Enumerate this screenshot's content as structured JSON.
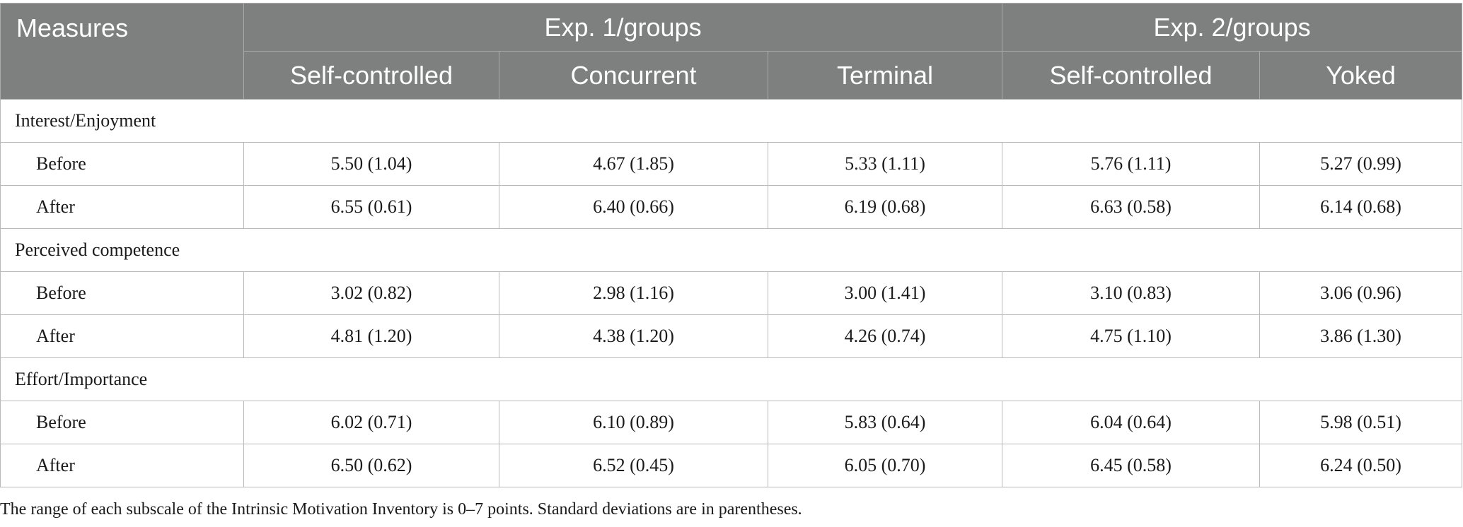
{
  "header": {
    "measures": "Measures",
    "exp1": "Exp. 1/groups",
    "exp2": "Exp. 2/groups",
    "groups": [
      "Self-controlled",
      "Concurrent",
      "Terminal",
      "Self-controlled",
      "Yoked"
    ]
  },
  "sections": [
    {
      "title": "Interest/Enjoyment",
      "rows": [
        {
          "label": "Before",
          "values": [
            "5.50 (1.04)",
            "4.67 (1.85)",
            "5.33 (1.11)",
            "5.76 (1.11)",
            "5.27 (0.99)"
          ]
        },
        {
          "label": "After",
          "values": [
            "6.55 (0.61)",
            "6.40 (0.66)",
            "6.19 (0.68)",
            "6.63 (0.58)",
            "6.14 (0.68)"
          ]
        }
      ]
    },
    {
      "title": "Perceived competence",
      "rows": [
        {
          "label": "Before",
          "values": [
            "3.02 (0.82)",
            "2.98 (1.16)",
            "3.00 (1.41)",
            "3.10 (0.83)",
            "3.06 (0.96)"
          ]
        },
        {
          "label": "After",
          "values": [
            "4.81 (1.20)",
            "4.38 (1.20)",
            "4.26 (0.74)",
            "4.75 (1.10)",
            "3.86 (1.30)"
          ]
        }
      ]
    },
    {
      "title": "Effort/Importance",
      "rows": [
        {
          "label": "Before",
          "values": [
            "6.02 (0.71)",
            "6.10 (0.89)",
            "5.83 (0.64)",
            "6.04 (0.64)",
            "5.98 (0.51)"
          ]
        },
        {
          "label": "After",
          "values": [
            "6.50 (0.62)",
            "6.52 (0.45)",
            "6.05 (0.70)",
            "6.45 (0.58)",
            "6.24 (0.50)"
          ]
        }
      ]
    }
  ],
  "footnote": "The range of each subscale of the Intrinsic Motivation Inventory is 0–7 points. Standard deviations are in parentheses.",
  "colors": {
    "header_bg": "#7e807f",
    "header_text": "#ffffff",
    "grid": "#b9b9b9"
  }
}
